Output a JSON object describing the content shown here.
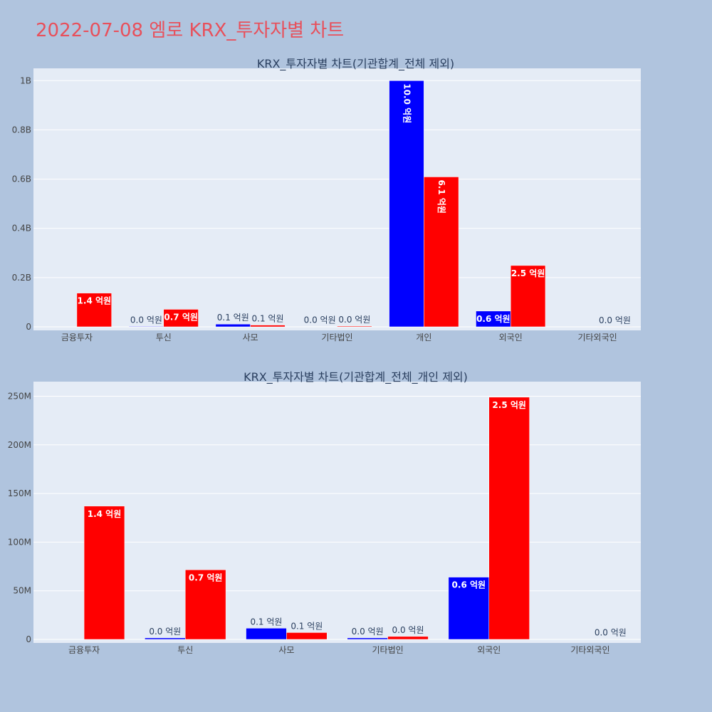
{
  "page": {
    "title": "2022-07-08 엠로 KRX_투자자별 차트",
    "background": "#b0c4de",
    "title_color": "#e8505b"
  },
  "chart_data": [
    {
      "type": "bar",
      "barmode": "group",
      "title": "KRX_투자자별 차트(기관합계_전체 제외)",
      "categories": [
        "금융투자",
        "투신",
        "사모",
        "기타법인",
        "개인",
        "외국인",
        "기타외국인"
      ],
      "ylim": [
        0,
        1.05
      ],
      "yunit": "B",
      "yticks": [
        0,
        0.2,
        0.4,
        0.6,
        0.8,
        1.0
      ],
      "ytick_labels": [
        "0",
        "0.2B",
        "0.4B",
        "0.6B",
        "0.8B",
        "1B"
      ],
      "grid": true,
      "legend": false,
      "series": [
        {
          "color": "#0000ff",
          "values": [
            0,
            0.002,
            0.011,
            0.001,
            1.0,
            0.064,
            0
          ],
          "labels": [
            "",
            "0.0 억원",
            "0.1 억원",
            "0.0 억원",
            "10.0 억원",
            "0.6 억원",
            ""
          ]
        },
        {
          "color": "#ff0000",
          "values": [
            0.137,
            0.071,
            0.007,
            0.003,
            0.609,
            0.249,
            0.0002
          ],
          "labels": [
            "1.4 억원",
            "0.7 억원",
            "0.1 억원",
            "0.0 억원",
            "6.1 억원",
            "2.5 억원",
            "0.0 억원"
          ]
        }
      ]
    },
    {
      "type": "bar",
      "barmode": "group",
      "title": "KRX_투자자별 차트(기관합계_전체_개인 제외)",
      "categories": [
        "금융투자",
        "투신",
        "사모",
        "기타법인",
        "외국인",
        "기타외국인"
      ],
      "ylim": [
        0,
        265
      ],
      "yunit": "M",
      "yticks": [
        0,
        50,
        100,
        150,
        200,
        250
      ],
      "ytick_labels": [
        "0",
        "50M",
        "100M",
        "150M",
        "200M",
        "250M"
      ],
      "grid": true,
      "legend": false,
      "series": [
        {
          "color": "#0000ff",
          "values": [
            0,
            1.5,
            11.5,
            1.5,
            64,
            0
          ],
          "labels": [
            "",
            "0.0 억원",
            "0.1 억원",
            "0.0 억원",
            "0.6 억원",
            ""
          ]
        },
        {
          "color": "#ff0000",
          "values": [
            137,
            71.5,
            7,
            3,
            249,
            0.2
          ],
          "labels": [
            "1.4 억원",
            "0.7 억원",
            "0.1 억원",
            "0.0 억원",
            "2.5 억원",
            "0.0 억원"
          ]
        }
      ]
    }
  ]
}
